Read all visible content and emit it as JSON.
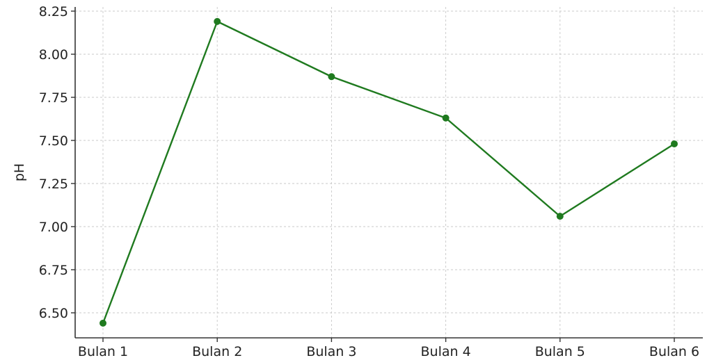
{
  "chart_data": {
    "type": "line",
    "categories": [
      "Bulan 1",
      "Bulan 2",
      "Bulan 3",
      "Bulan 4",
      "Bulan 5",
      "Bulan 6"
    ],
    "series": [
      {
        "values": [
          6.44,
          8.19,
          7.87,
          7.63,
          7.06,
          7.48
        ],
        "color": "#1f7a1f"
      }
    ],
    "xlabel": "",
    "ylabel": "pH",
    "y_ticks": [
      "6.50",
      "6.75",
      "7.00",
      "7.25",
      "7.50",
      "7.75",
      "8.00",
      "8.25"
    ],
    "ylim": [
      6.35,
      8.27
    ],
    "grid": true,
    "marker": "circle",
    "legend": "none"
  }
}
